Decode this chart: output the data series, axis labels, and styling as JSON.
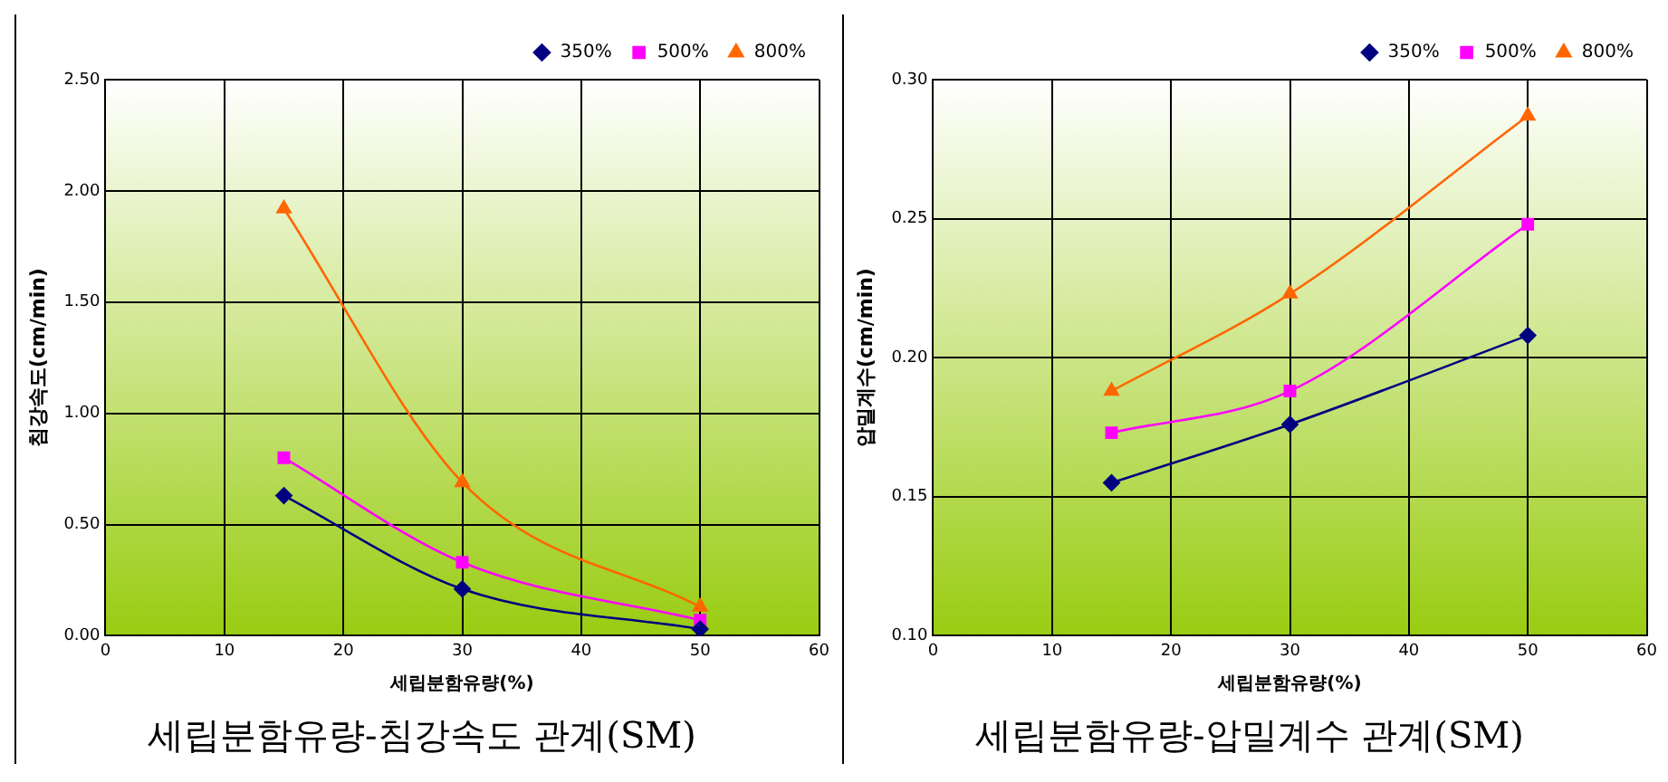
{
  "chart_data": [
    {
      "type": "line",
      "title": "세립분함유량-침강속도 관계(SM)",
      "xlabel": "세립분함유량(%)",
      "ylabel": "침강속도(cm/min)",
      "x": [
        15,
        30,
        50
      ],
      "xlim": [
        0,
        60
      ],
      "xticks": [
        0,
        10,
        20,
        30,
        40,
        50,
        60
      ],
      "ylim": [
        0,
        2.5
      ],
      "yticks": [
        {
          "value": 0,
          "label": "0.00"
        },
        {
          "value": 0.5,
          "label": "0.50"
        },
        {
          "value": 1,
          "label": "1.00"
        },
        {
          "value": 1.5,
          "label": "1.50"
        },
        {
          "value": 2,
          "label": "2.00"
        },
        {
          "value": 2.5,
          "label": "2.50"
        }
      ],
      "grid": true,
      "legend": "top right",
      "series": [
        {
          "name": "350%",
          "color": "#000080",
          "marker": "diamond",
          "values": [
            0.63,
            0.21,
            0.03
          ]
        },
        {
          "name": "500%",
          "color": "#ff00ff",
          "marker": "square",
          "values": [
            0.8,
            0.33,
            0.07
          ]
        },
        {
          "name": "800%",
          "color": "#ff6600",
          "marker": "triangle",
          "values": [
            1.92,
            0.69,
            0.13
          ]
        }
      ]
    },
    {
      "type": "line",
      "title": "세립분함유량-압밀계수 관계(SM)",
      "xlabel": "세립분함유량(%)",
      "ylabel": "압밀계수(cm/min)",
      "x": [
        15,
        30,
        50
      ],
      "xlim": [
        0,
        60
      ],
      "xticks": [
        0,
        10,
        20,
        30,
        40,
        50,
        60
      ],
      "ylim": [
        0.1,
        0.3
      ],
      "yticks": [
        {
          "value": 0.1,
          "label": "0.10"
        },
        {
          "value": 0.15,
          "label": "0.15"
        },
        {
          "value": 0.2,
          "label": "0.20"
        },
        {
          "value": 0.25,
          "label": "0.25"
        },
        {
          "value": 0.3,
          "label": "0.30"
        }
      ],
      "grid": true,
      "legend": "top right",
      "series": [
        {
          "name": "350%",
          "color": "#000080",
          "marker": "diamond",
          "values": [
            0.155,
            0.176,
            0.208
          ]
        },
        {
          "name": "500%",
          "color": "#ff00ff",
          "marker": "square",
          "values": [
            0.173,
            0.188,
            0.248
          ]
        },
        {
          "name": "800%",
          "color": "#ff6600",
          "marker": "triangle",
          "values": [
            0.188,
            0.223,
            0.287
          ]
        }
      ]
    }
  ]
}
